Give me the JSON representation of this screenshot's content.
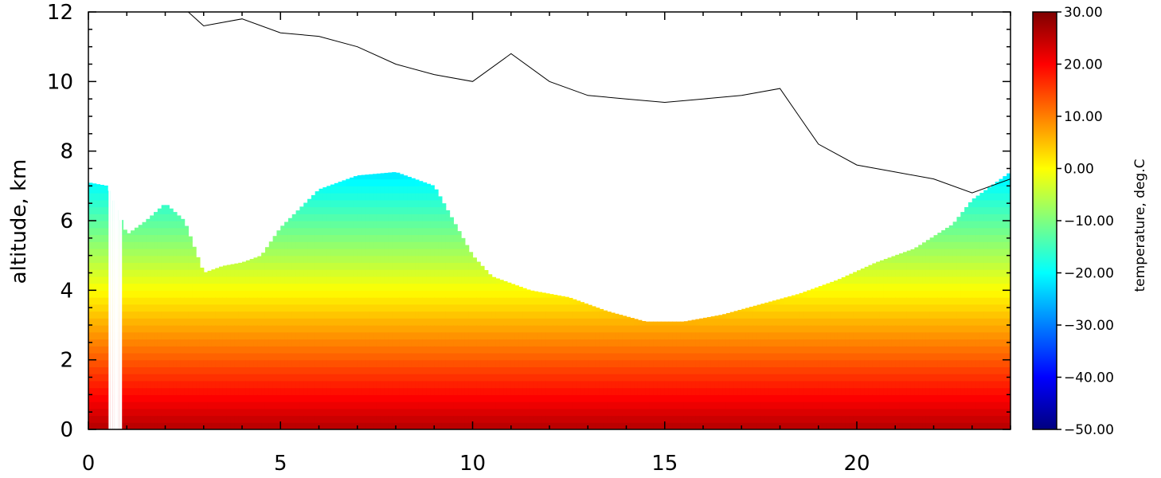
{
  "chart_data": {
    "type": "heatmap",
    "title": "",
    "xlabel": "",
    "ylabel": "altitude, km",
    "colorbar_label": "temperature, deg.C",
    "xlim": [
      0,
      24
    ],
    "ylim": [
      0,
      12
    ],
    "zlim": [
      -50,
      30
    ],
    "x_ticks": [
      "0",
      "5",
      "10",
      "15",
      "20"
    ],
    "x_tick_values": [
      0,
      5,
      10,
      15,
      20
    ],
    "y_ticks": [
      "0",
      "2",
      "4",
      "6",
      "8",
      "10",
      "12"
    ],
    "y_tick_values": [
      0,
      2,
      4,
      6,
      8,
      10,
      12
    ],
    "colorbar_ticks": [
      "30.00",
      "20.00",
      "10.00",
      "0.00",
      "−10.00",
      "−20.00",
      "−30.00",
      "−40.00",
      "−50.00"
    ],
    "colorbar_tick_values": [
      30,
      20,
      10,
      0,
      -10,
      -20,
      -30,
      -40,
      -50
    ],
    "colormap": "jet",
    "surface_temperature_c": 26,
    "lapse_rate_c_per_km": 6.5,
    "data_top_profile": {
      "x": [
        0,
        0.5,
        1.0,
        1.5,
        2.0,
        2.5,
        3.0,
        3.5,
        4.0,
        4.5,
        5.0,
        6.0,
        7.0,
        8.0,
        9.0,
        10.0,
        10.5,
        11.5,
        12.5,
        13.5,
        14.5,
        15.5,
        16.5,
        17.5,
        18.5,
        19.5,
        20.5,
        21.5,
        22.5,
        23.0,
        24.0
      ],
      "y": [
        7.1,
        7.0,
        5.6,
        6.0,
        6.5,
        6.0,
        4.5,
        4.7,
        4.8,
        5.0,
        5.8,
        6.9,
        7.3,
        7.4,
        7.0,
        5.0,
        4.4,
        4.0,
        3.8,
        3.4,
        3.1,
        3.1,
        3.3,
        3.6,
        3.9,
        4.3,
        4.8,
        5.2,
        5.9,
        6.6,
        7.4
      ]
    },
    "gap_x": [
      0.55,
      0.6,
      0.65,
      0.7,
      0.75,
      0.8,
      0.85
    ],
    "contour_top_profile": {
      "x": [
        2.6,
        3.0,
        4.0,
        5.0,
        6.0,
        7.0,
        8.0,
        9.0,
        10.0,
        11.0,
        12.0,
        13.0,
        14.0,
        15.0,
        16.0,
        17.0,
        18.0,
        18.5,
        19.0,
        20.0,
        21.0,
        22.0,
        23.0,
        24.0
      ],
      "y": [
        12.0,
        11.6,
        11.8,
        11.4,
        11.3,
        11.0,
        10.5,
        10.2,
        10.0,
        10.8,
        10.0,
        9.6,
        9.5,
        9.4,
        9.5,
        9.6,
        9.8,
        9.0,
        8.2,
        7.6,
        7.4,
        7.2,
        6.8,
        7.2
      ]
    }
  }
}
